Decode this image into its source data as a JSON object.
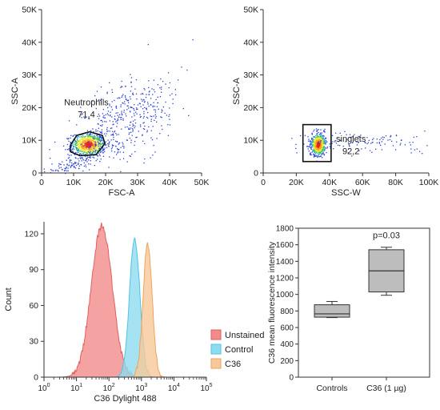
{
  "chart_data": [
    {
      "type": "scatter",
      "xlabel": "FSC-A",
      "ylabel": "SSC-A",
      "xlim": [
        0,
        50000
      ],
      "ylim": [
        0,
        50000
      ],
      "x_ticks": [
        0,
        10000,
        20000,
        30000,
        40000,
        50000
      ],
      "x_tick_labels": [
        "0",
        "10K",
        "20K",
        "30K",
        "40K",
        "50K"
      ],
      "y_ticks": [
        0,
        10000,
        20000,
        30000,
        40000,
        50000
      ],
      "y_tick_labels": [
        "0",
        "10K",
        "20K",
        "30K",
        "40K",
        "50K"
      ],
      "gate": {
        "shape": "polygon",
        "name": "Neutrophils",
        "value": "71,4",
        "vertices": [
          [
            9000,
            8500
          ],
          [
            11000,
            11500
          ],
          [
            15000,
            12600
          ],
          [
            19000,
            11500
          ],
          [
            19800,
            9000
          ],
          [
            17000,
            5600
          ],
          [
            12000,
            5300
          ],
          [
            9000,
            6500
          ]
        ]
      },
      "populations": [
        {
          "center": [
            14500,
            8800
          ],
          "spread": [
            2600,
            1700
          ],
          "count": 700,
          "density": "high"
        },
        {
          "center": [
            26000,
            17000
          ],
          "spread": [
            8500,
            6000
          ],
          "count": 450,
          "density": "low"
        },
        {
          "center": [
            10000,
            3000
          ],
          "spread": [
            6000,
            1500
          ],
          "count": 150,
          "density": "low"
        }
      ]
    },
    {
      "type": "scatter",
      "xlabel": "SSC-W",
      "ylabel": "SSC-A",
      "xlim": [
        0,
        100000
      ],
      "ylim": [
        0,
        50000
      ],
      "x_ticks": [
        0,
        20000,
        40000,
        60000,
        80000,
        100000
      ],
      "x_tick_labels": [
        "0",
        "20K",
        "40K",
        "60K",
        "80K",
        "100K"
      ],
      "y_ticks": [
        0,
        10000,
        20000,
        30000,
        40000,
        50000
      ],
      "y_tick_labels": [
        "0",
        "10K",
        "20K",
        "30K",
        "40K",
        "50K"
      ],
      "gate": {
        "shape": "rectangle",
        "name": "singlets",
        "value": "92,2",
        "x_range": [
          24000,
          41000
        ],
        "y_range": [
          3500,
          14800
        ]
      },
      "populations": [
        {
          "center": [
            33000,
            8800
          ],
          "spread": [
            2200,
            1700
          ],
          "count": 650,
          "density": "high"
        },
        {
          "center": [
            65000,
            9500
          ],
          "spread": [
            22000,
            1800
          ],
          "count": 120,
          "density": "low"
        }
      ]
    },
    {
      "type": "area",
      "xlabel": "C36 Dylight 488",
      "ylabel": "Count",
      "xscale": "log",
      "xlim": [
        1,
        100000
      ],
      "ylim": [
        0,
        130
      ],
      "y_ticks": [
        0,
        30,
        60,
        90,
        120
      ],
      "x_ticks": [
        1,
        10,
        100,
        1000,
        10000,
        100000
      ],
      "x_tick_bases": [
        "10",
        "10",
        "10",
        "10",
        "10",
        "10"
      ],
      "x_tick_exponents": [
        "0",
        "1",
        "2",
        "3",
        "4",
        "5"
      ],
      "legend_position": "bottom-right",
      "series": [
        {
          "name": "Unstained",
          "fill": "#f28b8b",
          "stroke": "#e06060",
          "peak_x": 60,
          "peak_y": 127,
          "log_sd": 0.32
        },
        {
          "name": "Control",
          "fill": "#8fdcf0",
          "stroke": "#4cc3e6",
          "peak_x": 620,
          "peak_y": 116,
          "log_sd": 0.16
        },
        {
          "name": "C36",
          "fill": "#f7c89a",
          "stroke": "#f0a35a",
          "peak_x": 1550,
          "peak_y": 111,
          "log_sd": 0.14
        }
      ]
    },
    {
      "type": "box",
      "ylabel": "C36 mean fluorescence intensity",
      "ylim": [
        0,
        1800
      ],
      "y_ticks": [
        0,
        200,
        400,
        600,
        800,
        1000,
        1200,
        1400,
        1600,
        1800
      ],
      "categories": [
        "Controls",
        "C36 (1 µg)"
      ],
      "boxes": [
        {
          "category": "Controls",
          "min": 720,
          "q1": 725,
          "median": 765,
          "q3": 875,
          "max": 915
        },
        {
          "category": "C36 (1 µg)",
          "min": 990,
          "q1": 1030,
          "median": 1285,
          "q3": 1540,
          "max": 1570
        }
      ],
      "annotation": "p=0.03",
      "box_fill": "#bdbdbd"
    }
  ]
}
